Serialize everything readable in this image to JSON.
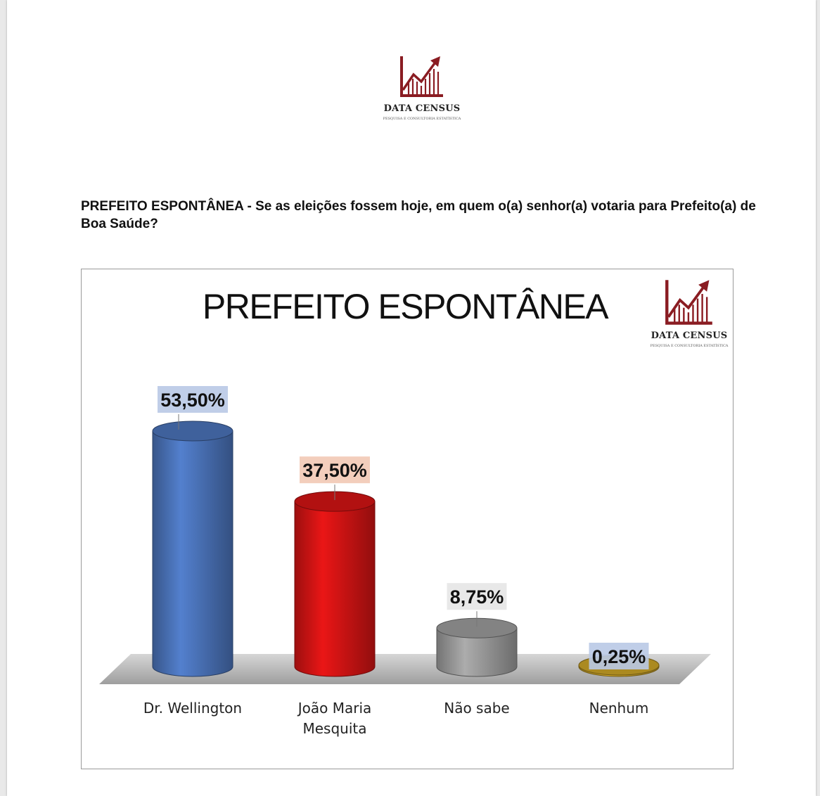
{
  "header": {
    "brand": "DATA CENSUS",
    "tagline": "PESQUISA E CONSULTORIA ESTATÍSTICA"
  },
  "question": {
    "text": "PREFEITO ESPONTÂNEA - Se as eleições fossem hoje, em quem o(a) senhor(a) votaria para Prefeito(a) de Boa Saúde?"
  },
  "chart_data": {
    "type": "bar",
    "title": "PREFEITO ESPONTÂNEA",
    "brand": "DATA CENSUS",
    "tagline": "PESQUISA E CONSULTORIA ESTATÍSTICA",
    "categories": [
      "Dr. Wellington",
      "João Maria Mesquita",
      "Não sabe",
      "Nenhum"
    ],
    "category_lines": [
      [
        "Dr. Wellington"
      ],
      [
        "João Maria",
        "Mesquita"
      ],
      [
        "Não sabe"
      ],
      [
        "Nenhum"
      ]
    ],
    "values": [
      53.5,
      37.5,
      8.75,
      0.25
    ],
    "value_labels": [
      "53,50%",
      "37,50%",
      "8,75%",
      "0,25%"
    ],
    "colors": [
      "#4a72b8",
      "#d11414",
      "#9a9a9a",
      "#c9a227"
    ],
    "label_bg_colors": [
      "#b9c9e6",
      "#f2c9b5",
      "#e6e6e6",
      "#b9c9e6"
    ],
    "ylim": [
      0,
      60
    ],
    "grid": false,
    "legend": "none",
    "style": "3d-cylinder"
  }
}
